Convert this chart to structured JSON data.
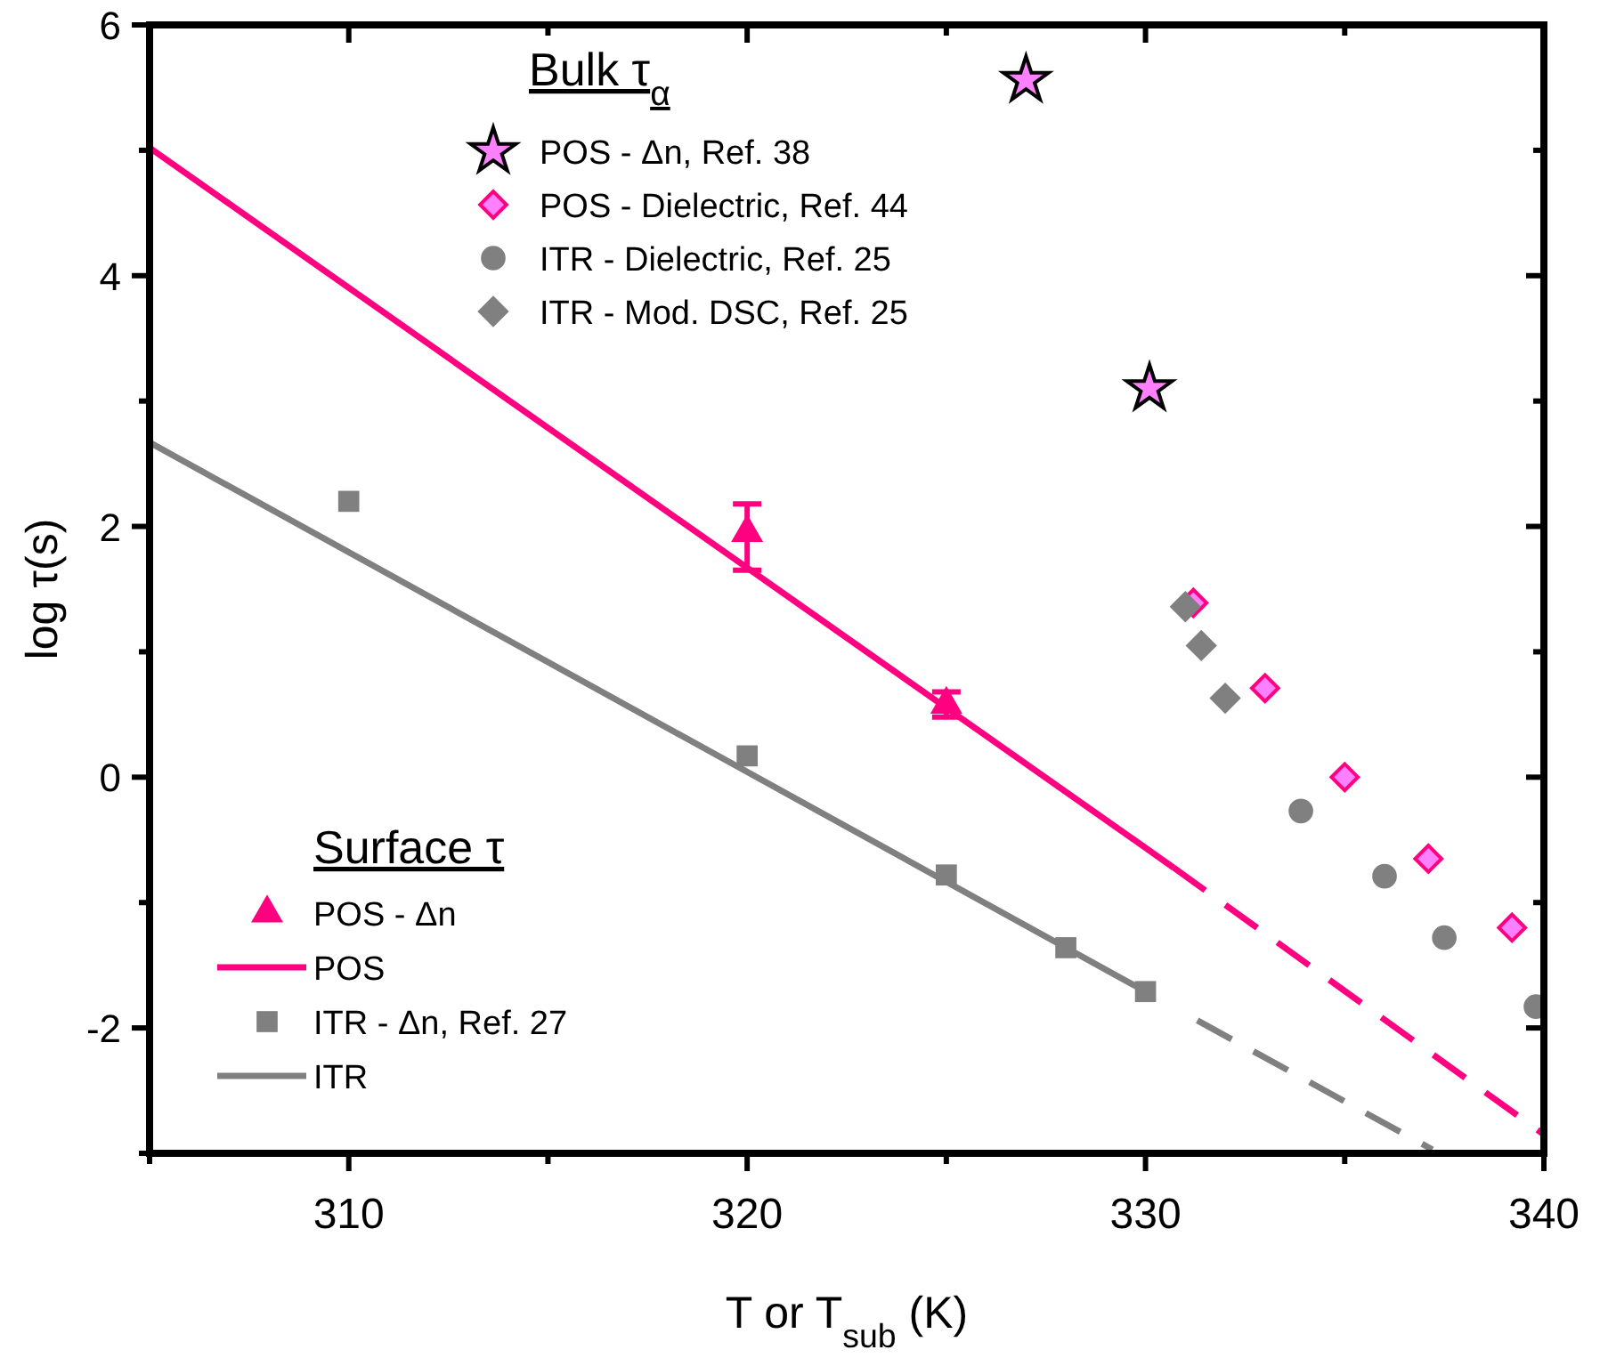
{
  "chart_data": {
    "type": "scatter",
    "xlabel": "T or T$_{sub}$ (K)",
    "ylabel": "log τ(s)",
    "legend_title": "Bulk τ$_{α}$",
    "annotations": [
      "Surface τ"
    ],
    "legend": "left",
    "xlim": [
      305,
      340
    ],
    "ylim": [
      -3,
      6
    ],
    "xticks": [
      {
        "value": 305,
        "label": null
      },
      310,
      {
        "value": 315,
        "label": null
      },
      320,
      {
        "value": 325,
        "label": null
      },
      330,
      {
        "value": 335,
        "label": null
      },
      340
    ],
    "yticks": [
      {
        "value": -3,
        "label": null
      },
      -2,
      {
        "value": -1,
        "label": null
      },
      0,
      {
        "value": 1,
        "label": null
      },
      2,
      {
        "value": 3,
        "label": null
      },
      4,
      {
        "value": 5,
        "label": null
      },
      6
    ],
    "series": [
      {
        "name": "POS - Δn, Ref. 38",
        "marker": "star",
        "color": "#ff80ff",
        "x": [
          327.0,
          330.1
        ],
        "values": [
          5.56,
          3.1
        ]
      },
      {
        "name": "POS - Dielectric, Ref. 44",
        "marker": "diamond",
        "color": "#ff80ff",
        "x": [
          331.2,
          333.0,
          335.0,
          337.1,
          339.2
        ],
        "values": [
          1.39,
          0.71,
          0.0,
          -0.65,
          -1.2
        ]
      },
      {
        "name": "ITR - Dielectric, Ref. 25",
        "marker": "circle",
        "color": "#808080",
        "x": [
          333.9,
          336.0,
          337.5,
          339.8
        ],
        "values": [
          -0.27,
          -0.79,
          -1.28,
          -1.83
        ]
      },
      {
        "name": "ITR - Mod. DSC, Ref. 25",
        "marker": "diamond",
        "color": "#808080",
        "x": [
          331.0,
          331.4,
          332.0
        ],
        "values": [
          1.36,
          1.05,
          0.63
        ]
      },
      {
        "name": "POS - Δn",
        "marker": "triangle",
        "color": "#ff0080",
        "x": [
          320,
          325
        ],
        "values": [
          1.95,
          0.58
        ],
        "errors": [
          [
            1.65,
            2.18
          ],
          [
            0.48,
            0.68
          ]
        ]
      },
      {
        "name": "POS",
        "type": "line",
        "marker": "none",
        "line_style": "solid",
        "color": "#ff0080",
        "x": [
          305,
          330.7
        ],
        "values": [
          5.02,
          -0.72
        ]
      },
      {
        "name": "ITR - Δn, Ref. 27",
        "marker": "square",
        "color": "#808080",
        "x": [
          310,
          320,
          325,
          328,
          330
        ],
        "values": [
          2.2,
          0.17,
          -0.78,
          -1.36,
          -1.71
        ]
      },
      {
        "name": "ITR",
        "type": "line",
        "marker": "none",
        "line_style": "solid",
        "color": "#808080",
        "x": [
          305,
          330
        ],
        "values": [
          2.67,
          -1.71
        ]
      },
      {
        "type": "line",
        "marker": "none",
        "line_style": "dashed",
        "color": "#ff0080",
        "x": [
          330.7,
          340
        ],
        "values": [
          -0.72,
          -2.85
        ]
      },
      {
        "type": "line",
        "marker": "none",
        "line_style": "dashed",
        "color": "#808080",
        "x": [
          331.3,
          337.2
        ],
        "values": [
          -1.94,
          -2.97
        ]
      }
    ]
  }
}
